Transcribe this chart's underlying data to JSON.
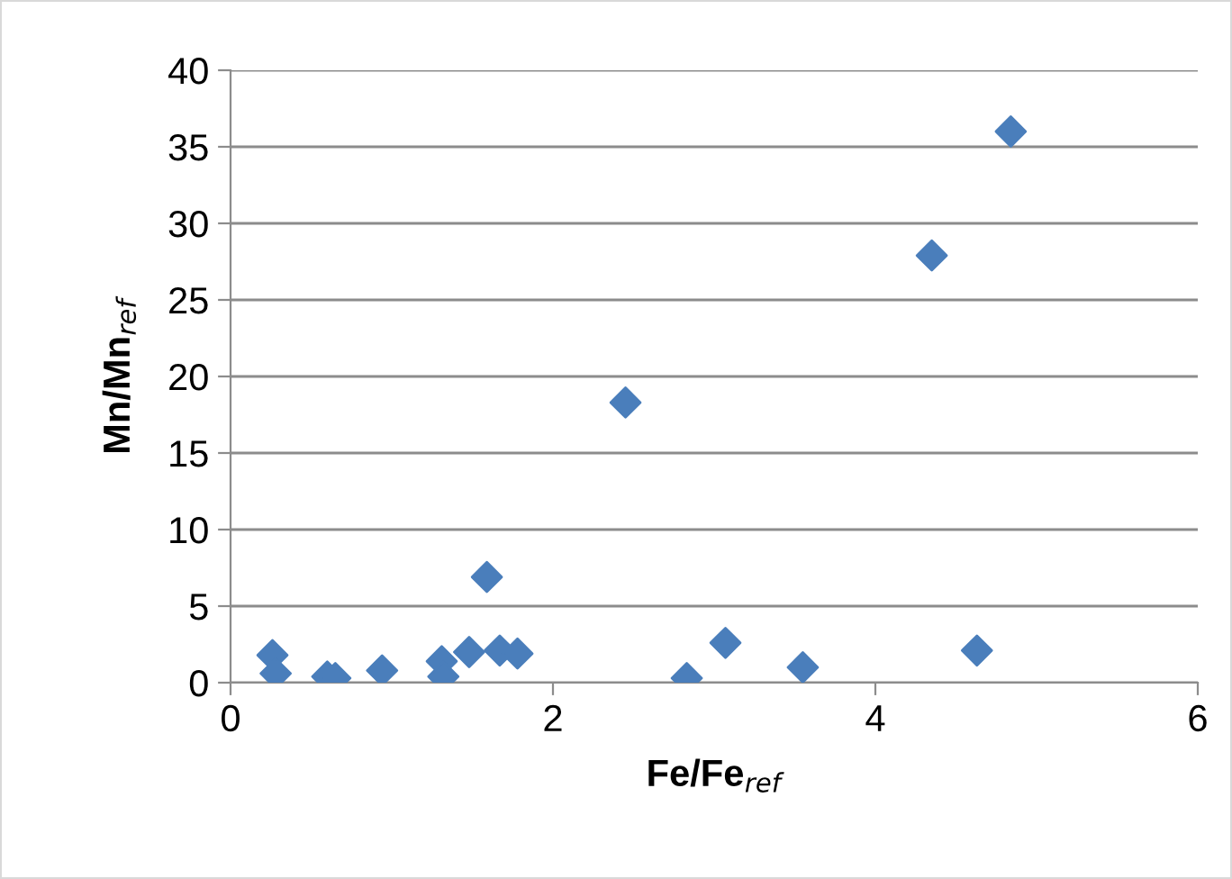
{
  "chart_data": {
    "type": "scatter",
    "xlabel": "Fe/Fe$_{ref}$",
    "ylabel": "Mn/Mn$_{ref}$",
    "x": [
      0.26,
      0.28,
      0.6,
      0.65,
      0.94,
      1.31,
      1.32,
      1.48,
      1.59,
      1.67,
      1.78,
      2.45,
      2.83,
      3.07,
      3.55,
      4.35,
      4.63,
      4.84
    ],
    "series": [
      {
        "color": "#4a7ebb",
        "values": [
          1.8,
          0.6,
          0.4,
          0.3,
          0.8,
          1.4,
          0.4,
          2.0,
          6.9,
          2.1,
          1.9,
          18.3,
          0.3,
          2.6,
          1.0,
          27.9,
          2.1,
          36.0
        ]
      }
    ],
    "marker": "diamond",
    "xlim": [
      0,
      6
    ],
    "xticks": [
      0,
      2,
      4,
      6
    ],
    "ylim": [
      0,
      40
    ],
    "yticks": [
      0,
      5,
      10,
      15,
      20,
      25,
      30,
      35,
      40
    ],
    "grid": "y",
    "legend": false
  }
}
